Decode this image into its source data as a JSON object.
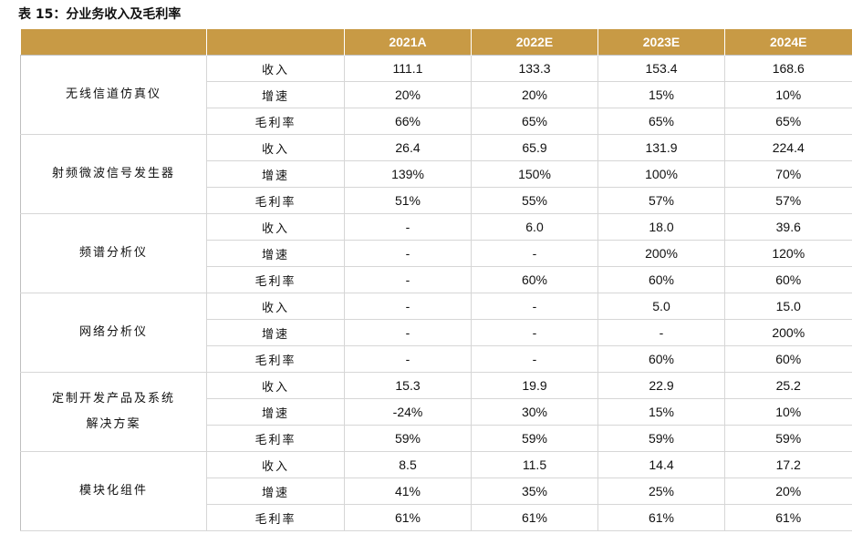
{
  "caption": "表 15：分业务收入及毛利率",
  "header": [
    "",
    "",
    "2021A",
    "2022E",
    "2023E",
    "2024E"
  ],
  "groups": [
    {
      "product": "无线信道仿真仪",
      "rows": [
        {
          "metric": "收入",
          "values": [
            "111.1",
            "133.3",
            "153.4",
            "168.6"
          ]
        },
        {
          "metric": "增速",
          "values": [
            "20%",
            "20%",
            "15%",
            "10%"
          ]
        },
        {
          "metric": "毛利率",
          "values": [
            "66%",
            "65%",
            "65%",
            "65%"
          ]
        }
      ]
    },
    {
      "product": "射频微波信号发生器",
      "rows": [
        {
          "metric": "收入",
          "values": [
            "26.4",
            "65.9",
            "131.9",
            "224.4"
          ]
        },
        {
          "metric": "增速",
          "values": [
            "139%",
            "150%",
            "100%",
            "70%"
          ]
        },
        {
          "metric": "毛利率",
          "values": [
            "51%",
            "55%",
            "57%",
            "57%"
          ]
        }
      ]
    },
    {
      "product": "频谱分析仪",
      "rows": [
        {
          "metric": "收入",
          "values": [
            "-",
            "6.0",
            "18.0",
            "39.6"
          ]
        },
        {
          "metric": "增速",
          "values": [
            "-",
            "-",
            "200%",
            "120%"
          ]
        },
        {
          "metric": "毛利率",
          "values": [
            "-",
            "60%",
            "60%",
            "60%"
          ]
        }
      ]
    },
    {
      "product": "网络分析仪",
      "rows": [
        {
          "metric": "收入",
          "values": [
            "-",
            "-",
            "5.0",
            "15.0"
          ]
        },
        {
          "metric": "增速",
          "values": [
            "-",
            "-",
            "-",
            "200%"
          ]
        },
        {
          "metric": "毛利率",
          "values": [
            "-",
            "-",
            "60%",
            "60%"
          ]
        }
      ]
    },
    {
      "product": "定制开发产品及系统解决方案",
      "rows": [
        {
          "metric": "收入",
          "values": [
            "15.3",
            "19.9",
            "22.9",
            "25.2"
          ]
        },
        {
          "metric": "增速",
          "values": [
            "-24%",
            "30%",
            "15%",
            "10%"
          ]
        },
        {
          "metric": "毛利率",
          "values": [
            "59%",
            "59%",
            "59%",
            "59%"
          ]
        }
      ]
    },
    {
      "product": "模块化组件",
      "rows": [
        {
          "metric": "收入",
          "values": [
            "8.5",
            "11.5",
            "14.4",
            "17.2"
          ]
        },
        {
          "metric": "增速",
          "values": [
            "41%",
            "35%",
            "25%",
            "20%"
          ]
        },
        {
          "metric": "毛利率",
          "values": [
            "61%",
            "61%",
            "61%",
            "61%"
          ]
        }
      ]
    }
  ]
}
